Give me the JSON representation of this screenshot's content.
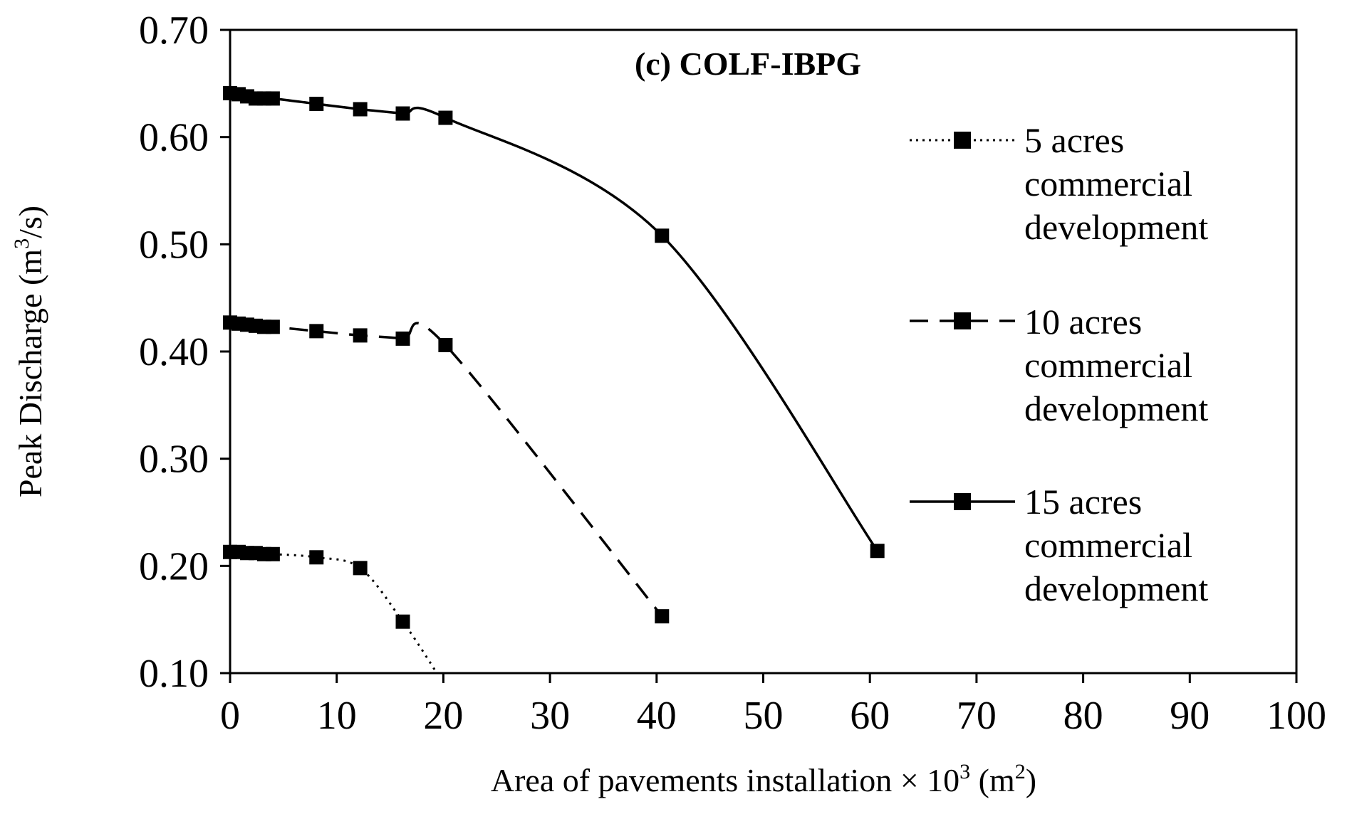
{
  "chart_data": {
    "type": "line",
    "title": "(c) COLF-IBPG",
    "xlabel": {
      "prefix": "Area of pavements installation × 10",
      "sup": "3",
      "suffix": " (m",
      "sup2": "2",
      "end": ")"
    },
    "ylabel": {
      "prefix": "Peak Discharge (m",
      "sup": "3",
      "suffix": "/s)"
    },
    "xlim": [
      0,
      100
    ],
    "ylim": [
      0.1,
      0.7
    ],
    "xticks": [
      0,
      10,
      20,
      30,
      40,
      50,
      60,
      70,
      80,
      90,
      100
    ],
    "xtick_labels": [
      "0",
      "10",
      "20",
      "30",
      "40",
      "50",
      "60",
      "70",
      "80",
      "90",
      "100"
    ],
    "yticks": [
      0.1,
      0.2,
      0.3,
      0.4,
      0.5,
      0.6,
      0.7
    ],
    "ytick_labels": [
      "0.10",
      "0.20",
      "0.30",
      "0.40",
      "0.50",
      "0.60",
      "0.70"
    ],
    "grid": false,
    "legend_position": "right",
    "series": [
      {
        "name": "5 acres commercial development",
        "legend_lines": [
          "5 acres",
          "commercial",
          "development"
        ],
        "style": "dotted",
        "color": "#000000",
        "x": [
          0,
          0.8,
          1.6,
          2.4,
          3.2,
          4.0,
          8.1,
          12.2,
          16.2
        ],
        "y": [
          0.213,
          0.213,
          0.212,
          0.212,
          0.211,
          0.211,
          0.208,
          0.198,
          0.148
        ],
        "end_x": 19.4,
        "end_y": 0.1
      },
      {
        "name": "10 acres commercial development",
        "legend_lines": [
          "10 acres",
          "commercial",
          "development"
        ],
        "style": "dashed",
        "color": "#000000",
        "x": [
          0,
          0.8,
          1.6,
          2.4,
          3.2,
          4.0,
          8.1,
          12.2,
          16.2,
          20.2,
          40.5
        ],
        "y": [
          0.427,
          0.426,
          0.425,
          0.424,
          0.423,
          0.423,
          0.419,
          0.415,
          0.412,
          0.406,
          0.153
        ]
      },
      {
        "name": "15 acres commercial development",
        "legend_lines": [
          "15 acres",
          "commercial",
          "development"
        ],
        "style": "solid",
        "color": "#000000",
        "x": [
          0,
          0.8,
          1.6,
          2.4,
          3.2,
          4.0,
          8.1,
          12.2,
          16.2,
          20.2,
          40.5,
          60.7
        ],
        "y": [
          0.641,
          0.64,
          0.638,
          0.636,
          0.636,
          0.636,
          0.631,
          0.626,
          0.622,
          0.618,
          0.508,
          0.214
        ]
      }
    ]
  }
}
